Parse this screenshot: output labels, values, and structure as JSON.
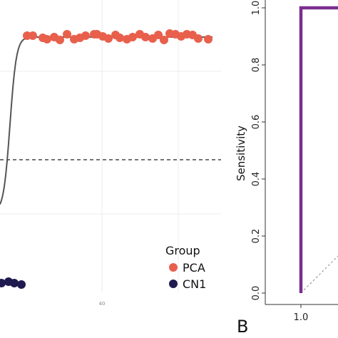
{
  "chart_data": [
    {
      "type": "scatter",
      "panel": "A",
      "x_tick_labels": [
        "40"
      ],
      "grid": true,
      "legend": {
        "title": "Group",
        "placement": "bottom-right",
        "entries": [
          {
            "label": "PCA",
            "color": "#e8604c"
          },
          {
            "label": "CN1",
            "color": "#1f1a4f"
          }
        ]
      },
      "threshold_line": "dashed horizontal",
      "fitted_curve": "sigmoid",
      "series": [
        {
          "name": "PCA",
          "color": "#e8604c",
          "y_level": "high plateau",
          "count": 30
        },
        {
          "name": "CN1",
          "color": "#1f1a4f",
          "y_level": "low",
          "count": 4
        }
      ]
    },
    {
      "type": "line",
      "panel": "B",
      "panel_label": "B",
      "ylabel": "Sensitivity",
      "ylim": [
        0,
        1.0
      ],
      "y_ticks": [
        "0.0",
        "0.2",
        "0.4",
        "0.6",
        "0.8",
        "1.0"
      ],
      "x_ticks": [
        "1.0"
      ],
      "x_reversed": true,
      "series": [
        {
          "color": "#7b2d8e",
          "x": [
            1.0,
            1.0,
            0.0
          ],
          "y": [
            0.0,
            1.0,
            1.0
          ]
        }
      ],
      "reference_line": "dashed diagonal"
    }
  ]
}
